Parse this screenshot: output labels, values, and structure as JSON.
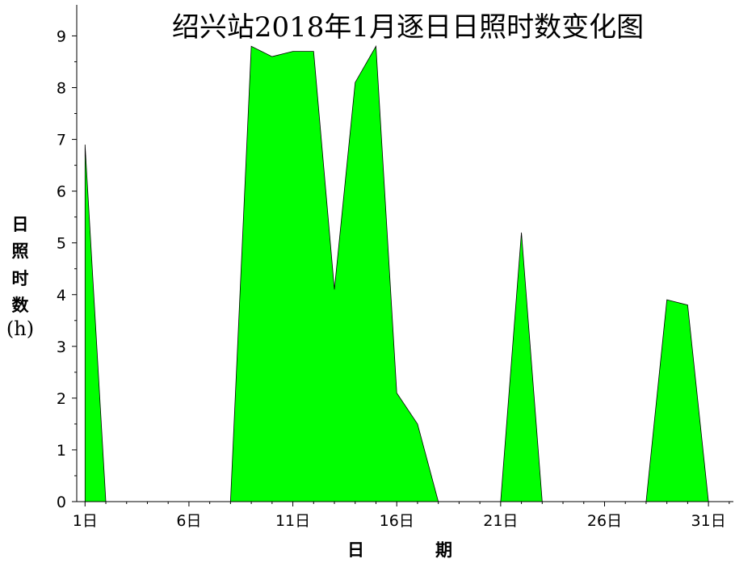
{
  "chart_data": {
    "type": "area",
    "title": "绍兴站2018年1月逐日日照时数变化图",
    "xlabel": "日期",
    "ylabel": [
      "日",
      "照",
      "时",
      "数",
      "(h)"
    ],
    "x": [
      1,
      2,
      3,
      4,
      5,
      6,
      7,
      8,
      9,
      10,
      11,
      12,
      13,
      14,
      15,
      16,
      17,
      18,
      19,
      20,
      21,
      22,
      23,
      24,
      25,
      26,
      27,
      28,
      29,
      30,
      31
    ],
    "values": [
      6.9,
      0,
      0,
      0,
      0,
      0,
      0,
      0,
      8.8,
      8.6,
      8.7,
      8.7,
      4.1,
      8.1,
      8.8,
      2.1,
      1.5,
      0,
      0,
      0,
      0,
      5.2,
      0,
      0,
      0,
      0,
      0,
      0,
      3.9,
      3.8,
      0
    ],
    "xticks": [
      1,
      6,
      11,
      16,
      21,
      26,
      31
    ],
    "xtick_labels": [
      "1日",
      "6日",
      "11日",
      "16日",
      "21日",
      "26日",
      "31日"
    ],
    "yticks": [
      0,
      1,
      2,
      3,
      4,
      5,
      6,
      7,
      8,
      9
    ],
    "ylim": [
      0,
      9.6
    ],
    "xlim": [
      0.6,
      32.2
    ],
    "fill_color": "#00ff00",
    "grid": false
  }
}
